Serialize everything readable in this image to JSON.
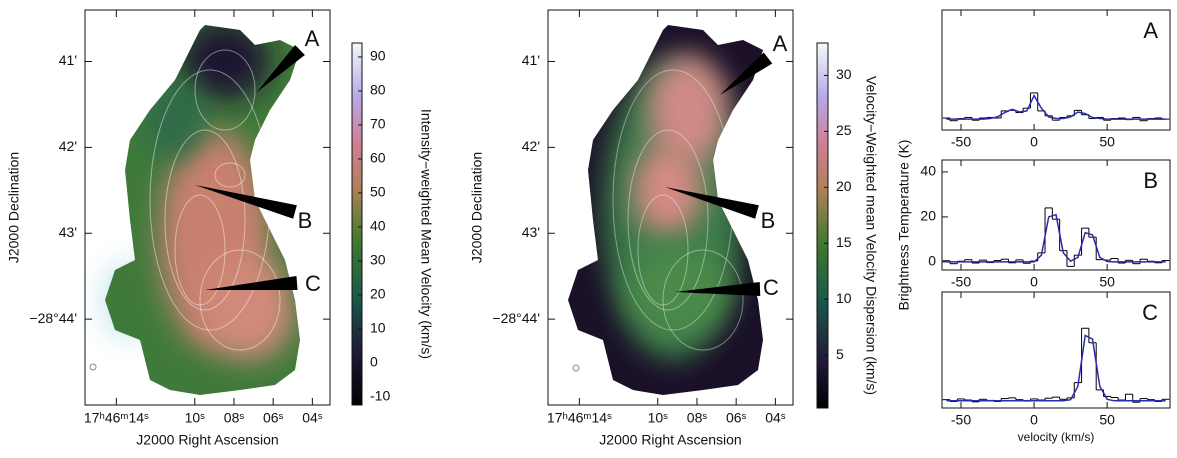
{
  "chart_data": [
    {
      "type": "map",
      "x_label": "J2000 Right Ascension",
      "y_label": "J2000 Declination",
      "xlim": [
        15.6,
        3.1
      ],
      "xticks": [
        {
          "value": 14,
          "label": "17ʰ46ᵐ14ˢ"
        },
        {
          "value": 10,
          "label": "10ˢ"
        },
        {
          "value": 8,
          "label": "08ˢ"
        },
        {
          "value": 6,
          "label": "06ˢ"
        },
        {
          "value": 4,
          "label": "04ˢ"
        }
      ],
      "ylim": [
        40.4,
        45.0
      ],
      "yticks": [
        {
          "value": 41,
          "label": "41'"
        },
        {
          "value": 42,
          "label": "42'"
        },
        {
          "value": 43,
          "label": "43'"
        },
        {
          "value": 44,
          "label": "−28°44'"
        }
      ],
      "markers": [
        "A",
        "B",
        "C"
      ],
      "colorbar": {
        "label": "Intensity−weighted Mean Velocity (km/s)",
        "ylim": [
          -12.4,
          94.1
        ],
        "yticks": [
          -10,
          0,
          10,
          20,
          30,
          40,
          50,
          60,
          70,
          80,
          90
        ]
      }
    },
    {
      "type": "map",
      "x_label": "J2000 Right Ascension",
      "y_label": "J2000 Declination",
      "xlim": [
        15.6,
        3.1
      ],
      "xticks": [
        {
          "value": 14,
          "label": "17ʰ46ᵐ14ˢ"
        },
        {
          "value": 10,
          "label": "10ˢ"
        },
        {
          "value": 8,
          "label": "08ˢ"
        },
        {
          "value": 6,
          "label": "06ˢ"
        },
        {
          "value": 4,
          "label": "04ˢ"
        }
      ],
      "ylim": [
        40.4,
        45.0
      ],
      "yticks": [
        {
          "value": 41,
          "label": "41'"
        },
        {
          "value": 42,
          "label": "42'"
        },
        {
          "value": 43,
          "label": "43'"
        },
        {
          "value": 44,
          "label": "−28°44'"
        }
      ],
      "markers": [
        "A",
        "B",
        "C"
      ],
      "colorbar": {
        "label": "Velocity−Weighted mean Velocity Dispersion (km/s)",
        "ylim": [
          0.27,
          32.9
        ],
        "yticks": [
          5,
          10,
          15,
          20,
          25,
          30
        ]
      }
    },
    {
      "type": "spectrum",
      "title": "A",
      "x": [
        -60,
        -55,
        -50,
        -45,
        -40,
        -35,
        -30,
        -25,
        -20,
        -15,
        -10,
        -5,
        0,
        5,
        10,
        15,
        20,
        25,
        30,
        35,
        40,
        45,
        50,
        55,
        60,
        65,
        70,
        75,
        80,
        85,
        90
      ],
      "xlim": [
        -63,
        93
      ],
      "xticks": [
        -50,
        0,
        50
      ],
      "ylim": [
        -2,
        20
      ],
      "series": [
        {
          "color": "#000000",
          "style": "steps",
          "values": [
            0.2,
            -0.3,
            0.1,
            0.3,
            -0.2,
            0.2,
            0.3,
            0.2,
            1.5,
            1.6,
            1.2,
            2.0,
            4.8,
            1.5,
            0.6,
            -0.2,
            0.3,
            0.6,
            1.6,
            0.8,
            0.1,
            0.3,
            -0.2,
            0.1,
            0.2,
            -0.1,
            0.3,
            -0.3,
            0.1,
            0.2,
            0
          ]
        },
        {
          "color": "#2b2bb0",
          "style": "line",
          "values": [
            0,
            0,
            0,
            0,
            0,
            0,
            0.1,
            0.4,
            1.2,
            1.8,
            1.3,
            1.5,
            4.3,
            2.0,
            0.4,
            0.1,
            0.1,
            0.4,
            1.3,
            1.0,
            0.3,
            0.1,
            0,
            0,
            0,
            0,
            0,
            0,
            0,
            0,
            0
          ]
        }
      ]
    },
    {
      "type": "spectrum",
      "title": "B",
      "y_label": "Brightness Temperature (K)",
      "x": [
        -60,
        -55,
        -50,
        -45,
        -40,
        -35,
        -30,
        -25,
        -20,
        -15,
        -10,
        -5,
        0,
        5,
        10,
        15,
        20,
        25,
        30,
        35,
        40,
        45,
        50,
        55,
        60,
        65,
        70,
        75,
        80,
        85,
        90
      ],
      "xlim": [
        -63,
        93
      ],
      "xticks": [
        -50,
        0,
        50
      ],
      "ylim": [
        -3.6,
        45.3
      ],
      "yticks": [
        0,
        20,
        40
      ],
      "series": [
        {
          "color": "#000000",
          "style": "steps",
          "values": [
            0.5,
            -0.8,
            0.3,
            1.0,
            -0.5,
            0.8,
            -0.3,
            0.6,
            1.2,
            -0.4,
            0.9,
            -0.6,
            0.4,
            4,
            24,
            19,
            5,
            -2,
            3,
            15,
            11,
            1,
            0.8,
            1.5,
            -0.5,
            0.7,
            -0.8,
            1.2,
            0.3,
            -0.4,
            0.6
          ]
        },
        {
          "color": "#2b2bb0",
          "style": "line",
          "values": [
            0,
            0,
            0,
            0,
            0,
            0,
            0,
            0,
            0,
            0,
            0,
            0,
            0,
            3,
            20,
            21,
            4,
            0.3,
            2,
            13,
            12,
            2,
            0.2,
            0,
            0,
            0,
            0,
            0,
            0,
            0,
            0
          ]
        }
      ]
    },
    {
      "type": "spectrum",
      "title": "C",
      "x_label": "velocity (km/s)",
      "x": [
        -60,
        -55,
        -50,
        -45,
        -40,
        -35,
        -30,
        -25,
        -20,
        -15,
        -10,
        -5,
        0,
        5,
        10,
        15,
        20,
        25,
        30,
        35,
        40,
        45,
        50,
        55,
        60,
        65,
        70,
        75,
        80,
        85,
        90
      ],
      "xlim": [
        -63,
        93
      ],
      "xticks": [
        -50,
        0,
        50
      ],
      "ylim": [
        -2,
        30
      ],
      "series": [
        {
          "color": "#000000",
          "style": "steps",
          "values": [
            0.3,
            -0.2,
            0.5,
            0.2,
            -0.3,
            0.4,
            0.1,
            -0.2,
            0.6,
            0.8,
            0.3,
            -0.1,
            0.5,
            0.2,
            0.7,
            1.0,
            0.4,
            0.8,
            5,
            20,
            16,
            3,
            1.2,
            0.9,
            0.2,
            1.8,
            -0.4,
            0.6,
            0.3,
            -0.2,
            0.4
          ]
        },
        {
          "color": "#2b2bb0",
          "style": "line",
          "values": [
            0,
            0,
            0,
            0,
            0,
            0,
            0,
            0,
            0,
            0,
            0,
            0,
            0,
            0,
            0,
            0,
            0,
            0.3,
            4,
            18,
            17,
            4,
            0.4,
            0,
            0,
            0,
            0,
            0,
            0,
            0,
            0
          ]
        }
      ]
    }
  ]
}
